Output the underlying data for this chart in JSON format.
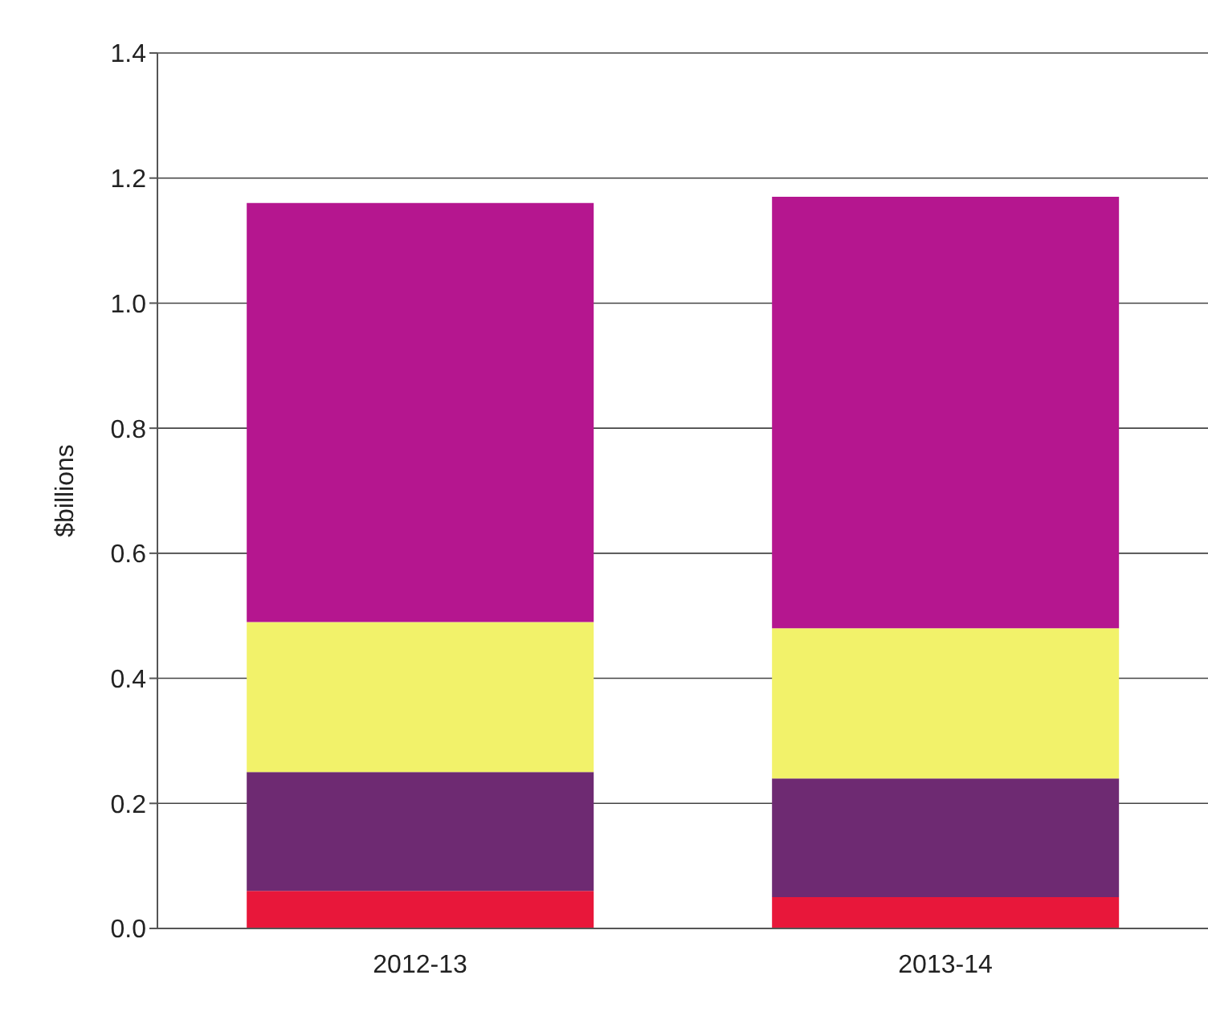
{
  "chart_data": {
    "type": "bar",
    "ylabel": "$billions",
    "categories": [
      "2012-13",
      "2013-14"
    ],
    "stacked": true,
    "series": [
      {
        "color": "#e8173a",
        "values": [
          0.06,
          0.05
        ]
      },
      {
        "color": "#6e2a72",
        "values": [
          0.19,
          0.19
        ]
      },
      {
        "color": "#f2f26a",
        "values": [
          0.24,
          0.24
        ]
      },
      {
        "color": "#b5168f",
        "values": [
          0.67,
          0.69
        ]
      }
    ],
    "ylim": [
      0,
      1.4
    ],
    "yticks": [
      {
        "value": 0,
        "label": "0.0"
      },
      0.2,
      0.4,
      0.6,
      0.8,
      {
        "value": 1,
        "label": "1.0"
      },
      1.2,
      1.4
    ],
    "grid": "y",
    "legend": false
  }
}
